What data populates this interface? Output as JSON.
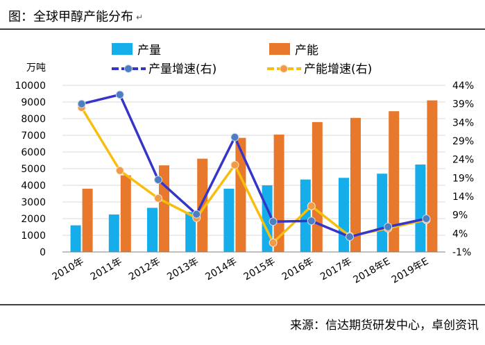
{
  "figure": {
    "title": "图：全球甲醇产能分布",
    "title_mark": "↵",
    "source": "来源：信达期货研发中心，卓创资讯"
  },
  "colors": {
    "production": "#16AEEA",
    "capacity": "#E8782C",
    "production_growth": "#3535C8",
    "capacity_growth": "#F7BE0E",
    "growth_marker": "#4D7EC0",
    "capacity_marker": "#F29A48",
    "grid": "#D9D9D9",
    "axis": "#808080"
  },
  "chart_data": {
    "type": "bar",
    "title": "全球甲醇产能分布",
    "unit_label": "万吨",
    "categories": [
      "2010年",
      "2011年",
      "2012年",
      "2013年",
      "2014年",
      "2015年",
      "2016年",
      "2017年",
      "2018年E",
      "2019年E"
    ],
    "y_left": {
      "ylim": [
        0,
        10000
      ],
      "ticks": [
        "10000",
        "9000",
        "8000",
        "7000",
        "6000",
        "5000",
        "4000",
        "3000",
        "2000",
        "1000",
        "0"
      ]
    },
    "y_right": {
      "ylim": [
        -0.01,
        0.44
      ],
      "ticks": [
        "44%",
        "39%",
        "34%",
        "29%",
        "24%",
        "19%",
        "14%",
        "9%",
        "4%",
        "-1%"
      ]
    },
    "series": [
      {
        "name": "产量",
        "kind": "bar",
        "axis": "left",
        "values": [
          1600,
          2250,
          2650,
          2400,
          3800,
          4000,
          4350,
          4450,
          4700,
          5250
        ]
      },
      {
        "name": "产能",
        "kind": "bar",
        "axis": "left",
        "values": [
          3800,
          4600,
          5200,
          5600,
          6850,
          7050,
          7800,
          8050,
          8450,
          9100
        ]
      },
      {
        "name": "产量增速(右)",
        "kind": "line",
        "axis": "right",
        "values": [
          0.39,
          0.415,
          0.185,
          0.092,
          0.3,
          0.072,
          0.074,
          0.031,
          0.058,
          0.08
        ]
      },
      {
        "name": "产能增速(右)",
        "kind": "line",
        "axis": "right",
        "values": [
          0.38,
          0.21,
          0.135,
          0.082,
          0.225,
          0.015,
          0.114,
          0.033,
          0.054,
          0.077
        ]
      }
    ],
    "legend": [
      {
        "label": "产量"
      },
      {
        "label": "产能"
      },
      {
        "label": "产量增速(右)"
      },
      {
        "label": "产能增速(右)"
      }
    ]
  }
}
